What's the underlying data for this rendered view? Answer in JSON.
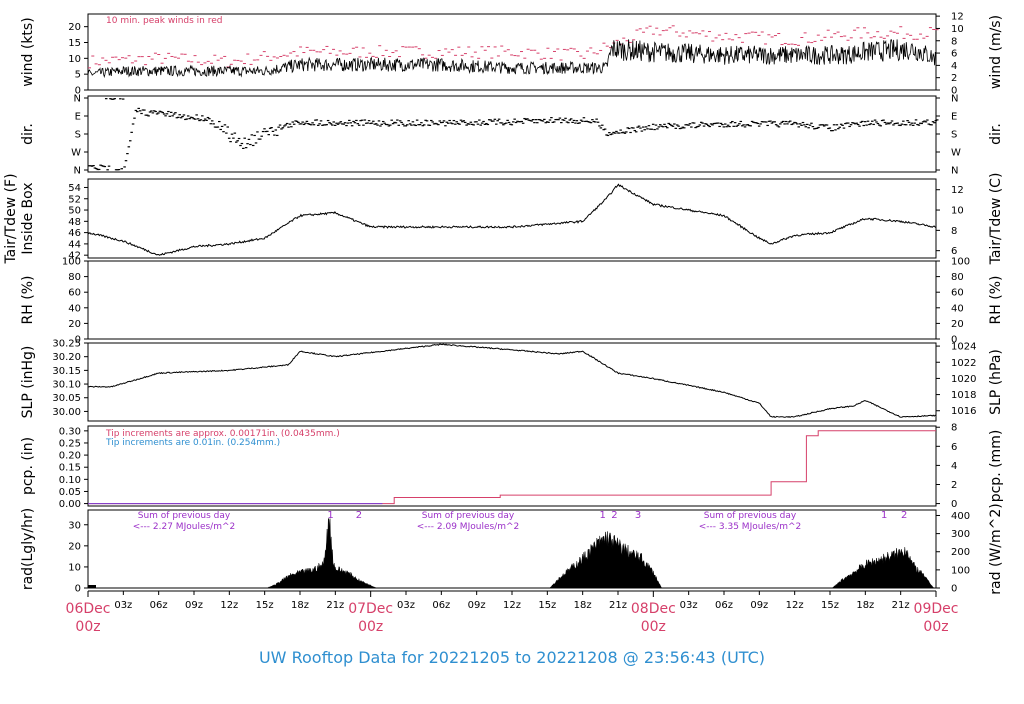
{
  "footer": {
    "title": "UW Rooftop Data for 20221205  to  20221208 @ 23:56:43  (UTC)"
  },
  "colors": {
    "line": "#000000",
    "peak": "#d6406a",
    "note_blue": "#2f8fd0",
    "note_purple": "#9b30c8",
    "date_label": "#d6406a",
    "footer": "#2f8fd0"
  },
  "chart_data": [
    {
      "id": "wind",
      "type": "line",
      "ylabel": "wind (kts)",
      "ylabel_right": "wind (m/s)",
      "ylim": [
        0,
        24
      ],
      "ticks_left": [
        "0",
        "5",
        "10",
        "15",
        "20"
      ],
      "ticks_right": [
        "0",
        "2",
        "4",
        "6",
        "8",
        "10",
        "12"
      ],
      "annotation": "10 min. peak winds in red",
      "series": [
        {
          "name": "10 min. peak winds",
          "color": "#d6406a",
          "style": "dashes",
          "x_hours": [
            0,
            6,
            12,
            18,
            24,
            30,
            36,
            42,
            48,
            54,
            60,
            66,
            72
          ],
          "y": [
            9,
            10,
            9,
            12,
            12,
            12,
            12,
            11,
            19,
            17,
            16,
            18,
            18
          ]
        },
        {
          "name": "wind",
          "color": "#000000",
          "style": "line",
          "x_hours": [
            0,
            3,
            6,
            9,
            12,
            15,
            18,
            21,
            24,
            30,
            36,
            42,
            44,
            44.5,
            48,
            54,
            60,
            64,
            66,
            70,
            72
          ],
          "y": [
            5,
            6,
            6,
            6,
            6,
            6,
            8,
            8,
            8,
            8,
            7,
            7,
            7,
            13,
            12,
            11,
            11,
            11,
            12,
            13,
            10
          ]
        }
      ]
    },
    {
      "id": "dir",
      "type": "scatter",
      "ylabel": "dir.",
      "ylabel_right": "dir.",
      "ticks_left": [
        "N",
        "W",
        "S",
        "E",
        "N"
      ],
      "ticks_right": [
        "N",
        "W",
        "S",
        "E",
        "N"
      ],
      "series": [
        {
          "name": "direction",
          "x_hours": [
            0,
            1,
            3,
            4,
            5,
            6,
            8,
            10,
            12,
            13,
            14,
            15,
            18,
            21,
            24,
            30,
            36,
            40,
            43,
            44,
            48,
            54,
            60,
            63,
            66,
            69,
            72
          ],
          "y_deg": [
            345,
            350,
            355,
            60,
            75,
            75,
            95,
            100,
            190,
            230,
            200,
            165,
            120,
            125,
            125,
            125,
            120,
            110,
            115,
            175,
            145,
            130,
            130,
            150,
            125,
            125,
            120
          ]
        }
      ]
    },
    {
      "id": "temp",
      "type": "line",
      "ylabel": "Tair/Tdew (F)",
      "ylabel2": "Inside Box",
      "ylabel_right": "Tair/Tdew (C)",
      "ylim_f": [
        41.5,
        55.5
      ],
      "ticks_left": [
        "42",
        "44",
        "46",
        "48",
        "50",
        "52",
        "54"
      ],
      "ticks_right": [
        "6",
        "8",
        "10",
        "12"
      ],
      "series": [
        {
          "name": "Tair",
          "x_hours": [
            0,
            3,
            6,
            9,
            12,
            15,
            18,
            21,
            24,
            27,
            30,
            36,
            42,
            44,
            45,
            48,
            51,
            54,
            57,
            58,
            60,
            63,
            66,
            69,
            72
          ],
          "y": [
            46,
            44.5,
            42,
            43.5,
            44,
            45,
            49,
            49.5,
            47,
            47,
            47,
            47,
            48,
            52,
            54.5,
            51,
            50,
            49,
            45,
            44,
            45.5,
            46,
            48.5,
            48,
            47
          ]
        }
      ]
    },
    {
      "id": "rh",
      "type": "line",
      "ylabel": "RH (%)",
      "ylabel_right": "RH (%)",
      "ylim": [
        0,
        100
      ],
      "ticks_left": [
        "0",
        "20",
        "40",
        "60",
        "80",
        "100"
      ],
      "ticks_right": [
        "0",
        "20",
        "40",
        "60",
        "80",
        "100"
      ],
      "series": []
    },
    {
      "id": "slp",
      "type": "line",
      "ylabel": "SLP (inHg)",
      "ylabel_right": "SLP (hPa)",
      "ylim": [
        29.965,
        30.25
      ],
      "ticks_left": [
        "30.00",
        "30.05",
        "30.10",
        "30.15",
        "30.20",
        "30.25"
      ],
      "ticks_right": [
        "1016",
        "1018",
        "1020",
        "1022",
        "1024"
      ],
      "series": [
        {
          "name": "SLP",
          "x_hours": [
            0,
            2,
            6,
            12,
            17,
            18,
            21,
            27,
            30,
            36,
            40,
            42,
            45,
            48,
            54,
            57,
            58,
            60,
            63,
            65,
            66,
            69,
            72
          ],
          "y": [
            30.09,
            30.09,
            30.14,
            30.15,
            30.17,
            30.22,
            30.2,
            30.23,
            30.245,
            30.225,
            30.21,
            30.22,
            30.14,
            30.12,
            30.07,
            30.03,
            29.98,
            29.98,
            30.01,
            30.02,
            30.04,
            29.98,
            29.985
          ]
        }
      ]
    },
    {
      "id": "pcp",
      "type": "line",
      "ylabel": "pcp. (in)",
      "ylabel_right": "pcp. (mm)",
      "ylim": [
        -0.01,
        0.32
      ],
      "ticks_left": [
        "0.00",
        "0.05",
        "0.10",
        "0.15",
        "0.20",
        "0.25",
        "0.30"
      ],
      "ticks_right": [
        "0",
        "2",
        "4",
        "6",
        "8"
      ],
      "annotations": [
        "Tip increments are approx. 0.00171in. (0.0435mm.)",
        "Tip increments are 0.01in. (0.254mm.)"
      ],
      "series": [
        {
          "name": "pcp approx",
          "color": "#d6406a",
          "x_hours": [
            0,
            25.5,
            26,
            34.5,
            35,
            57,
            58,
            61,
            62,
            72
          ],
          "y": [
            0,
            0,
            0.025,
            0.025,
            0.035,
            0.035,
            0.09,
            0.28,
            0.3,
            0.3
          ]
        },
        {
          "name": "pcp 0.01",
          "color": "#7a3ad0",
          "x_hours": [
            0,
            25
          ],
          "y": [
            0,
            0
          ]
        }
      ]
    },
    {
      "id": "rad",
      "type": "area",
      "ylabel": "rad(Lgly/hr)",
      "ylabel_right": "rad (W/m^2)",
      "ylim": [
        0,
        37
      ],
      "ticks_left": [
        "0",
        "10",
        "20",
        "30"
      ],
      "ticks_right": [
        "0",
        "100",
        "200",
        "300",
        "400"
      ],
      "annotations": [
        {
          "lines": [
            "Sum of previous day",
            "<--- 2.27 MJoules/m^2"
          ]
        },
        {
          "lines": [
            "Sum of previous day",
            "<--- 2.09 MJoules/m^2"
          ]
        },
        {
          "lines": [
            "Sum of previous day",
            "<--- 3.35 MJoules/m^2"
          ]
        }
      ],
      "markers": [
        {
          "label": "1",
          "x_hour": 20.6
        },
        {
          "label": "2",
          "x_hour": 23
        },
        {
          "label": "1",
          "x_hour": 43.7
        },
        {
          "label": "2",
          "x_hour": 44.7
        },
        {
          "label": "3",
          "x_hour": 46.7
        },
        {
          "label": "1",
          "x_hour": 67.6
        },
        {
          "label": "2",
          "x_hour": 69.3
        }
      ],
      "series": [
        {
          "name": "day1",
          "x_hours": [
            15.2,
            16,
            17,
            18,
            19,
            20,
            20.5,
            20.8,
            21,
            22,
            23,
            24.5
          ],
          "y": [
            0,
            2,
            6,
            8,
            9,
            12,
            36,
            14,
            10,
            8,
            4,
            0
          ]
        },
        {
          "name": "day2",
          "x_hours": [
            39.2,
            40,
            41,
            42,
            43,
            44,
            45,
            46,
            47,
            48,
            48.7
          ],
          "y": [
            0,
            5,
            10,
            15,
            21,
            26,
            22,
            18,
            15,
            8,
            0
          ]
        },
        {
          "name": "day3",
          "x_hours": [
            63.2,
            64,
            65,
            66,
            67,
            68,
            69,
            69.5,
            70,
            71,
            71.8
          ],
          "y": [
            0,
            4,
            8,
            12,
            14,
            16,
            18,
            20,
            12,
            6,
            0
          ]
        }
      ]
    }
  ],
  "x_axis": {
    "hour_ticks": [
      {
        "label": "03z",
        "hour": 3
      },
      {
        "label": "06z",
        "hour": 6
      },
      {
        "label": "09z",
        "hour": 9
      },
      {
        "label": "12z",
        "hour": 12
      },
      {
        "label": "15z",
        "hour": 15
      },
      {
        "label": "18z",
        "hour": 18
      },
      {
        "label": "21z",
        "hour": 21
      },
      {
        "label": "03z",
        "hour": 27
      },
      {
        "label": "06z",
        "hour": 30
      },
      {
        "label": "09z",
        "hour": 33
      },
      {
        "label": "12z",
        "hour": 36
      },
      {
        "label": "15z",
        "hour": 39
      },
      {
        "label": "18z",
        "hour": 42
      },
      {
        "label": "21z",
        "hour": 45
      },
      {
        "label": "03z",
        "hour": 51
      },
      {
        "label": "06z",
        "hour": 54
      },
      {
        "label": "09z",
        "hour": 57
      },
      {
        "label": "12z",
        "hour": 60
      },
      {
        "label": "15z",
        "hour": 63
      },
      {
        "label": "18z",
        "hour": 66
      },
      {
        "label": "21z",
        "hour": 69
      }
    ],
    "date_ticks": [
      {
        "date": "06Dec",
        "time": "00z",
        "hour": 0
      },
      {
        "date": "07Dec",
        "time": "00z",
        "hour": 24
      },
      {
        "date": "08Dec",
        "time": "00z",
        "hour": 48
      },
      {
        "date": "09Dec",
        "time": "00z",
        "hour": 72
      }
    ]
  }
}
